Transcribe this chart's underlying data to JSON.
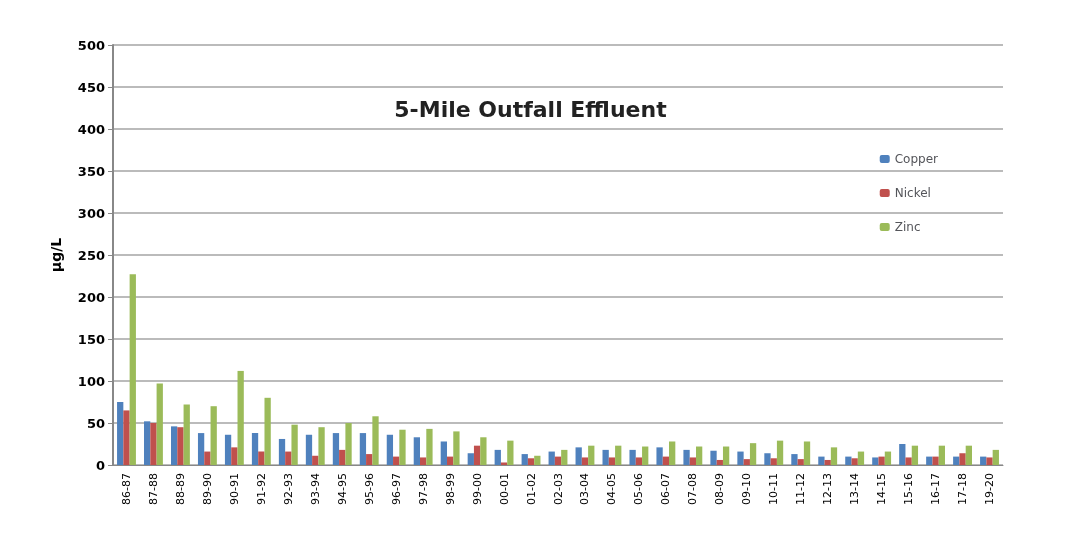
{
  "chart_data": {
    "type": "bar",
    "title": "5-Mile Outfall Effluent",
    "ylabel": "µg/L",
    "categories": [
      "86-87",
      "87-88",
      "88-89",
      "89-90",
      "90-91",
      "91-92",
      "92-93",
      "93-94",
      "94-95",
      "95-96",
      "96-97",
      "97-98",
      "98-99",
      "99-00",
      "00-01",
      "01-02",
      "02-03",
      "03-04",
      "04-05",
      "05-06",
      "06-07",
      "07-08",
      "08-09",
      "09-10",
      "10-11",
      "11-12",
      "12-13",
      "13-14",
      "14-15",
      "15-16",
      "16-17",
      "17-18",
      "19-20"
    ],
    "series": [
      {
        "name": "Copper",
        "color": "#4f81bd",
        "values": [
          75,
          52,
          46,
          38,
          36,
          38,
          31,
          36,
          38,
          38,
          36,
          33,
          28,
          14,
          18,
          13,
          16,
          21,
          18,
          18,
          21,
          18,
          17,
          16,
          14,
          13,
          10,
          10,
          9,
          25,
          10,
          10,
          10
        ]
      },
      {
        "name": "Nickel",
        "color": "#c0504d",
        "values": [
          65,
          50,
          45,
          16,
          21,
          16,
          16,
          11,
          18,
          13,
          10,
          9,
          10,
          23,
          3,
          8,
          10,
          9,
          9,
          9,
          10,
          9,
          6,
          7,
          8,
          7,
          6,
          8,
          10,
          9,
          10,
          14,
          9
        ]
      },
      {
        "name": "Zinc",
        "color": "#9bbb59",
        "values": [
          227,
          97,
          72,
          70,
          112,
          80,
          48,
          45,
          50,
          58,
          42,
          43,
          40,
          33,
          29,
          11,
          18,
          23,
          23,
          22,
          28,
          22,
          22,
          26,
          29,
          28,
          21,
          16,
          16,
          23,
          23,
          23,
          18
        ]
      }
    ],
    "ylim": [
      0,
      500
    ],
    "yticks": [
      0,
      50,
      100,
      150,
      200,
      250,
      300,
      350,
      400,
      450,
      500
    ],
    "grid": "y",
    "legend": "top right"
  }
}
